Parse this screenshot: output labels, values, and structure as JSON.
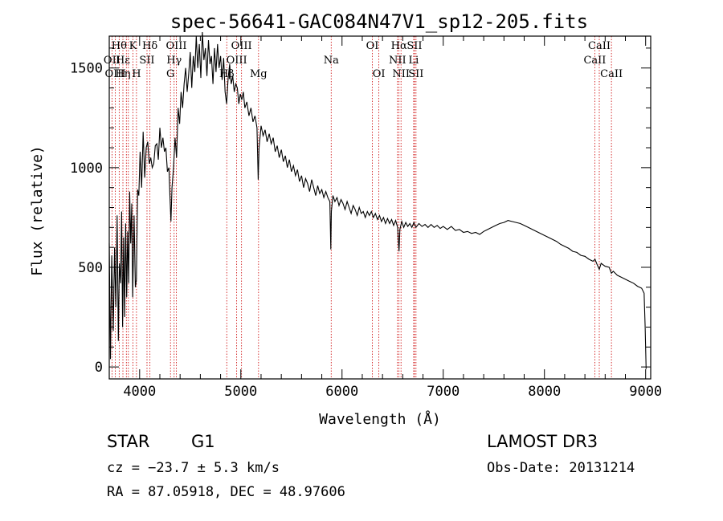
{
  "chart_data": {
    "type": "line",
    "title": "spec-56641-GAC084N47V1_sp12-205.fits",
    "xlabel": "Wavelength (Å)",
    "ylabel": "Flux (relative)",
    "xlim": [
      3700,
      9050
    ],
    "ylim": [
      -60,
      1660
    ],
    "xticks": [
      4000,
      5000,
      6000,
      7000,
      8000,
      9000
    ],
    "yticks": [
      0,
      500,
      1000,
      1500
    ],
    "series": [
      {
        "name": "spectrum",
        "points": [
          [
            3700,
            620
          ],
          [
            3712,
            40
          ],
          [
            3725,
            560
          ],
          [
            3740,
            180
          ],
          [
            3752,
            600
          ],
          [
            3765,
            300
          ],
          [
            3778,
            760
          ],
          [
            3790,
            130
          ],
          [
            3800,
            520
          ],
          [
            3812,
            420
          ],
          [
            3822,
            780
          ],
          [
            3832,
            200
          ],
          [
            3842,
            650
          ],
          [
            3852,
            250
          ],
          [
            3862,
            720
          ],
          [
            3872,
            350
          ],
          [
            3882,
            680
          ],
          [
            3892,
            420
          ],
          [
            3902,
            880
          ],
          [
            3912,
            620
          ],
          [
            3922,
            820
          ],
          [
            3932,
            350
          ],
          [
            3945,
            760
          ],
          [
            3958,
            400
          ],
          [
            3968,
            440
          ],
          [
            3980,
            890
          ],
          [
            3992,
            860
          ],
          [
            4005,
            1080
          ],
          [
            4020,
            900
          ],
          [
            4035,
            1180
          ],
          [
            4050,
            950
          ],
          [
            4065,
            1100
          ],
          [
            4080,
            1130
          ],
          [
            4095,
            1020
          ],
          [
            4110,
            1050
          ],
          [
            4125,
            1000
          ],
          [
            4140,
            1020
          ],
          [
            4155,
            1110
          ],
          [
            4170,
            1120
          ],
          [
            4185,
            1040
          ],
          [
            4200,
            1200
          ],
          [
            4215,
            1100
          ],
          [
            4230,
            1150
          ],
          [
            4245,
            1080
          ],
          [
            4260,
            1100
          ],
          [
            4275,
            980
          ],
          [
            4290,
            1000
          ],
          [
            4300,
            850
          ],
          [
            4310,
            730
          ],
          [
            4320,
            900
          ],
          [
            4335,
            1000
          ],
          [
            4350,
            1150
          ],
          [
            4365,
            1050
          ],
          [
            4380,
            1300
          ],
          [
            4395,
            1220
          ],
          [
            4410,
            1380
          ],
          [
            4425,
            1300
          ],
          [
            4440,
            1420
          ],
          [
            4455,
            1500
          ],
          [
            4470,
            1380
          ],
          [
            4485,
            1470
          ],
          [
            4500,
            1580
          ],
          [
            4515,
            1400
          ],
          [
            4530,
            1560
          ],
          [
            4545,
            1480
          ],
          [
            4560,
            1660
          ],
          [
            4575,
            1500
          ],
          [
            4590,
            1620
          ],
          [
            4605,
            1450
          ],
          [
            4620,
            1680
          ],
          [
            4635,
            1540
          ],
          [
            4650,
            1600
          ],
          [
            4665,
            1460
          ],
          [
            4680,
            1640
          ],
          [
            4695,
            1520
          ],
          [
            4710,
            1560
          ],
          [
            4725,
            1420
          ],
          [
            4740,
            1600
          ],
          [
            4755,
            1480
          ],
          [
            4770,
            1620
          ],
          [
            4785,
            1500
          ],
          [
            4800,
            1560
          ],
          [
            4815,
            1440
          ],
          [
            4830,
            1550
          ],
          [
            4845,
            1380
          ],
          [
            4860,
            1320
          ],
          [
            4875,
            1450
          ],
          [
            4890,
            1520
          ],
          [
            4905,
            1420
          ],
          [
            4920,
            1460
          ],
          [
            4935,
            1380
          ],
          [
            4950,
            1420
          ],
          [
            4965,
            1400
          ],
          [
            4980,
            1320
          ],
          [
            4995,
            1370
          ],
          [
            5010,
            1340
          ],
          [
            5025,
            1380
          ],
          [
            5040,
            1300
          ],
          [
            5060,
            1330
          ],
          [
            5080,
            1260
          ],
          [
            5100,
            1300
          ],
          [
            5120,
            1230
          ],
          [
            5140,
            1260
          ],
          [
            5160,
            1200
          ],
          [
            5172,
            940
          ],
          [
            5180,
            1100
          ],
          [
            5200,
            1210
          ],
          [
            5220,
            1160
          ],
          [
            5240,
            1190
          ],
          [
            5260,
            1130
          ],
          [
            5280,
            1170
          ],
          [
            5300,
            1120
          ],
          [
            5320,
            1150
          ],
          [
            5340,
            1080
          ],
          [
            5360,
            1110
          ],
          [
            5380,
            1050
          ],
          [
            5400,
            1090
          ],
          [
            5420,
            1030
          ],
          [
            5440,
            1060
          ],
          [
            5460,
            1000
          ],
          [
            5480,
            1040
          ],
          [
            5500,
            980
          ],
          [
            5520,
            1010
          ],
          [
            5540,
            960
          ],
          [
            5560,
            990
          ],
          [
            5580,
            930
          ],
          [
            5600,
            960
          ],
          [
            5620,
            900
          ],
          [
            5640,
            945
          ],
          [
            5660,
            920
          ],
          [
            5680,
            880
          ],
          [
            5700,
            940
          ],
          [
            5720,
            900
          ],
          [
            5740,
            860
          ],
          [
            5760,
            910
          ],
          [
            5780,
            870
          ],
          [
            5800,
            890
          ],
          [
            5820,
            850
          ],
          [
            5840,
            880
          ],
          [
            5860,
            850
          ],
          [
            5880,
            830
          ],
          [
            5889,
            590
          ],
          [
            5895,
            780
          ],
          [
            5910,
            860
          ],
          [
            5930,
            830
          ],
          [
            5950,
            850
          ],
          [
            5970,
            810
          ],
          [
            5990,
            840
          ],
          [
            6010,
            820
          ],
          [
            6030,
            790
          ],
          [
            6050,
            830
          ],
          [
            6070,
            800
          ],
          [
            6090,
            770
          ],
          [
            6110,
            810
          ],
          [
            6130,
            790
          ],
          [
            6150,
            760
          ],
          [
            6170,
            800
          ],
          [
            6190,
            770
          ],
          [
            6210,
            780
          ],
          [
            6230,
            750
          ],
          [
            6250,
            780
          ],
          [
            6270,
            760
          ],
          [
            6290,
            780
          ],
          [
            6310,
            750
          ],
          [
            6330,
            770
          ],
          [
            6350,
            740
          ],
          [
            6370,
            760
          ],
          [
            6390,
            730
          ],
          [
            6410,
            750
          ],
          [
            6430,
            720
          ],
          [
            6450,
            745
          ],
          [
            6470,
            720
          ],
          [
            6490,
            740
          ],
          [
            6510,
            710
          ],
          [
            6530,
            735
          ],
          [
            6550,
            700
          ],
          [
            6563,
            580
          ],
          [
            6572,
            690
          ],
          [
            6590,
            730
          ],
          [
            6610,
            700
          ],
          [
            6630,
            725
          ],
          [
            6650,
            705
          ],
          [
            6670,
            720
          ],
          [
            6690,
            700
          ],
          [
            6710,
            725
          ],
          [
            6730,
            700
          ],
          [
            6760,
            720
          ],
          [
            6790,
            705
          ],
          [
            6820,
            715
          ],
          [
            6850,
            700
          ],
          [
            6880,
            715
          ],
          [
            6910,
            700
          ],
          [
            6940,
            710
          ],
          [
            6970,
            695
          ],
          [
            7000,
            705
          ],
          [
            7040,
            690
          ],
          [
            7080,
            705
          ],
          [
            7120,
            685
          ],
          [
            7160,
            690
          ],
          [
            7200,
            675
          ],
          [
            7240,
            680
          ],
          [
            7280,
            670
          ],
          [
            7320,
            675
          ],
          [
            7360,
            665
          ],
          [
            7400,
            680
          ],
          [
            7440,
            690
          ],
          [
            7480,
            700
          ],
          [
            7520,
            710
          ],
          [
            7560,
            720
          ],
          [
            7600,
            725
          ],
          [
            7640,
            735
          ],
          [
            7680,
            730
          ],
          [
            7720,
            725
          ],
          [
            7760,
            720
          ],
          [
            7800,
            710
          ],
          [
            7840,
            700
          ],
          [
            7880,
            690
          ],
          [
            7920,
            680
          ],
          [
            7960,
            670
          ],
          [
            8000,
            660
          ],
          [
            8040,
            650
          ],
          [
            8080,
            640
          ],
          [
            8120,
            630
          ],
          [
            8160,
            615
          ],
          [
            8200,
            605
          ],
          [
            8240,
            595
          ],
          [
            8280,
            580
          ],
          [
            8320,
            575
          ],
          [
            8360,
            560
          ],
          [
            8400,
            555
          ],
          [
            8440,
            540
          ],
          [
            8480,
            530
          ],
          [
            8500,
            540
          ],
          [
            8520,
            515
          ],
          [
            8542,
            490
          ],
          [
            8560,
            520
          ],
          [
            8600,
            505
          ],
          [
            8640,
            500
          ],
          [
            8662,
            470
          ],
          [
            8680,
            480
          ],
          [
            8720,
            460
          ],
          [
            8760,
            450
          ],
          [
            8800,
            440
          ],
          [
            8840,
            430
          ],
          [
            8880,
            420
          ],
          [
            8920,
            405
          ],
          [
            8960,
            395
          ],
          [
            8985,
            370
          ],
          [
            8995,
            200
          ],
          [
            9005,
            -10
          ]
        ]
      }
    ],
    "line_labels": [
      {
        "text": "Hθ",
        "x": 3798,
        "row": 1
      },
      {
        "text": "Hε",
        "x": 3835,
        "row": 2
      },
      {
        "text": "K",
        "x": 3934,
        "row": 1
      },
      {
        "text": "Hδ",
        "x": 4102,
        "row": 1
      },
      {
        "text": "SII",
        "x": 4073,
        "row": 2
      },
      {
        "text": "OIII",
        "x": 4363,
        "row": 1
      },
      {
        "text": "Hγ",
        "x": 4341,
        "row": 2
      },
      {
        "text": "G",
        "x": 4305,
        "row": 3
      },
      {
        "text": "OII",
        "x": 3727,
        "row": 2
      },
      {
        "text": "OIII",
        "x": 3760,
        "row": 3
      },
      {
        "text": "Hη",
        "x": 3835,
        "row": 3
      },
      {
        "text": "H",
        "x": 3969,
        "row": 3
      },
      {
        "text": "OIII",
        "x": 5007,
        "row": 1
      },
      {
        "text": "OIII",
        "x": 4959,
        "row": 2
      },
      {
        "text": "Hβ",
        "x": 4861,
        "row": 3
      },
      {
        "text": "Mg",
        "x": 5175,
        "row": 3
      },
      {
        "text": "Na",
        "x": 5893,
        "row": 2
      },
      {
        "text": "OI",
        "x": 6300,
        "row": 1
      },
      {
        "text": "OI",
        "x": 6364,
        "row": 3
      },
      {
        "text": "Hα",
        "x": 6563,
        "row": 1
      },
      {
        "text": "SII",
        "x": 6716,
        "row": 1
      },
      {
        "text": "NII",
        "x": 6548,
        "row": 2
      },
      {
        "text": "Li",
        "x": 6708,
        "row": 2
      },
      {
        "text": "NII",
        "x": 6583,
        "row": 3
      },
      {
        "text": "SII",
        "x": 6731,
        "row": 3
      },
      {
        "text": "CaII",
        "x": 8542,
        "row": 1
      },
      {
        "text": "CaII",
        "x": 8498,
        "row": 2
      },
      {
        "text": "CaII",
        "x": 8662,
        "row": 3
      }
    ],
    "line_marks": [
      3727,
      3760,
      3798,
      3835,
      3869,
      3889,
      3934,
      3969,
      4073,
      4102,
      4305,
      4341,
      4363,
      4861,
      4959,
      5007,
      5175,
      5893,
      6300,
      6364,
      6548,
      6563,
      6583,
      6708,
      6716,
      6731,
      8498,
      8542,
      8662
    ],
    "colors": {
      "line_marker": "#cc0000",
      "axis": "#000000",
      "spectrum": "#000000"
    }
  },
  "info": {
    "object_class": "STAR",
    "subclass": "G1",
    "survey": "LAMOST DR3",
    "redshift": "cz = −23.7 ± 5.3 km/s",
    "obs_date": "Obs-Date: 20131214",
    "coords": "RA =  87.05918, DEC =  48.97606"
  }
}
